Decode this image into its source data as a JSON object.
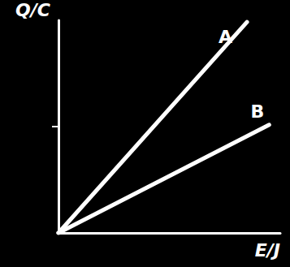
{
  "chart_data": {
    "type": "line",
    "x_label": "E/J",
    "y_label": "Q/C",
    "xlim": [
      0,
      10
    ],
    "ylim": [
      0,
      12
    ],
    "yticks": [
      6
    ],
    "tick_labels": false,
    "grid": false,
    "series": [
      {
        "name": "A",
        "color": "#ffffff",
        "x": [
          0,
          8.5
        ],
        "values": [
          0,
          11.9
        ]
      },
      {
        "name": "B",
        "color": "#ffffff",
        "x": [
          0,
          9.5
        ],
        "values": [
          0,
          6.1
        ]
      }
    ]
  }
}
